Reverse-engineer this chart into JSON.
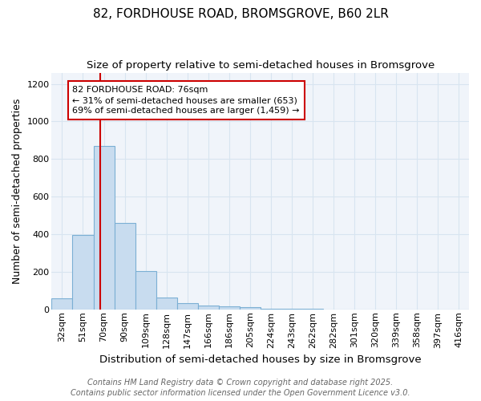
{
  "title_line1": "82, FORDHOUSE ROAD, BROMSGROVE, B60 2LR",
  "title_line2": "Size of property relative to semi-detached houses in Bromsgrove",
  "xlabel": "Distribution of semi-detached houses by size in Bromsgrove",
  "ylabel": "Number of semi-detached properties",
  "bin_labels": [
    "32sqm",
    "51sqm",
    "70sqm",
    "90sqm",
    "109sqm",
    "128sqm",
    "147sqm",
    "166sqm",
    "186sqm",
    "205sqm",
    "224sqm",
    "243sqm",
    "262sqm",
    "282sqm",
    "301sqm",
    "320sqm",
    "339sqm",
    "358sqm",
    "397sqm",
    "416sqm"
  ],
  "bin_values": [
    60,
    395,
    870,
    460,
    205,
    65,
    35,
    22,
    15,
    10,
    5,
    3,
    2,
    1,
    1,
    0,
    0,
    0,
    0,
    0
  ],
  "bar_color": "#c8dcef",
  "bar_edge_color": "#7bafd4",
  "red_line_color": "#cc0000",
  "red_line_bin_index": 2,
  "annotation_text": "82 FORDHOUSE ROAD: 76sqm\n← 31% of semi-detached houses are smaller (653)\n69% of semi-detached houses are larger (1,459) →",
  "annotation_box_color": "white",
  "annotation_box_edge_color": "#cc0000",
  "ylim": [
    0,
    1260
  ],
  "yticks": [
    0,
    200,
    400,
    600,
    800,
    1000,
    1200
  ],
  "footer_line1": "Contains HM Land Registry data © Crown copyright and database right 2025.",
  "footer_line2": "Contains public sector information licensed under the Open Government Licence v3.0.",
  "bg_color": "#ffffff",
  "plot_bg_color": "#f0f4fa",
  "grid_color": "#d8e4f0",
  "title_fontsize": 11,
  "subtitle_fontsize": 9.5,
  "axis_label_fontsize": 9,
  "tick_fontsize": 8,
  "annotation_fontsize": 8,
  "footer_fontsize": 7
}
